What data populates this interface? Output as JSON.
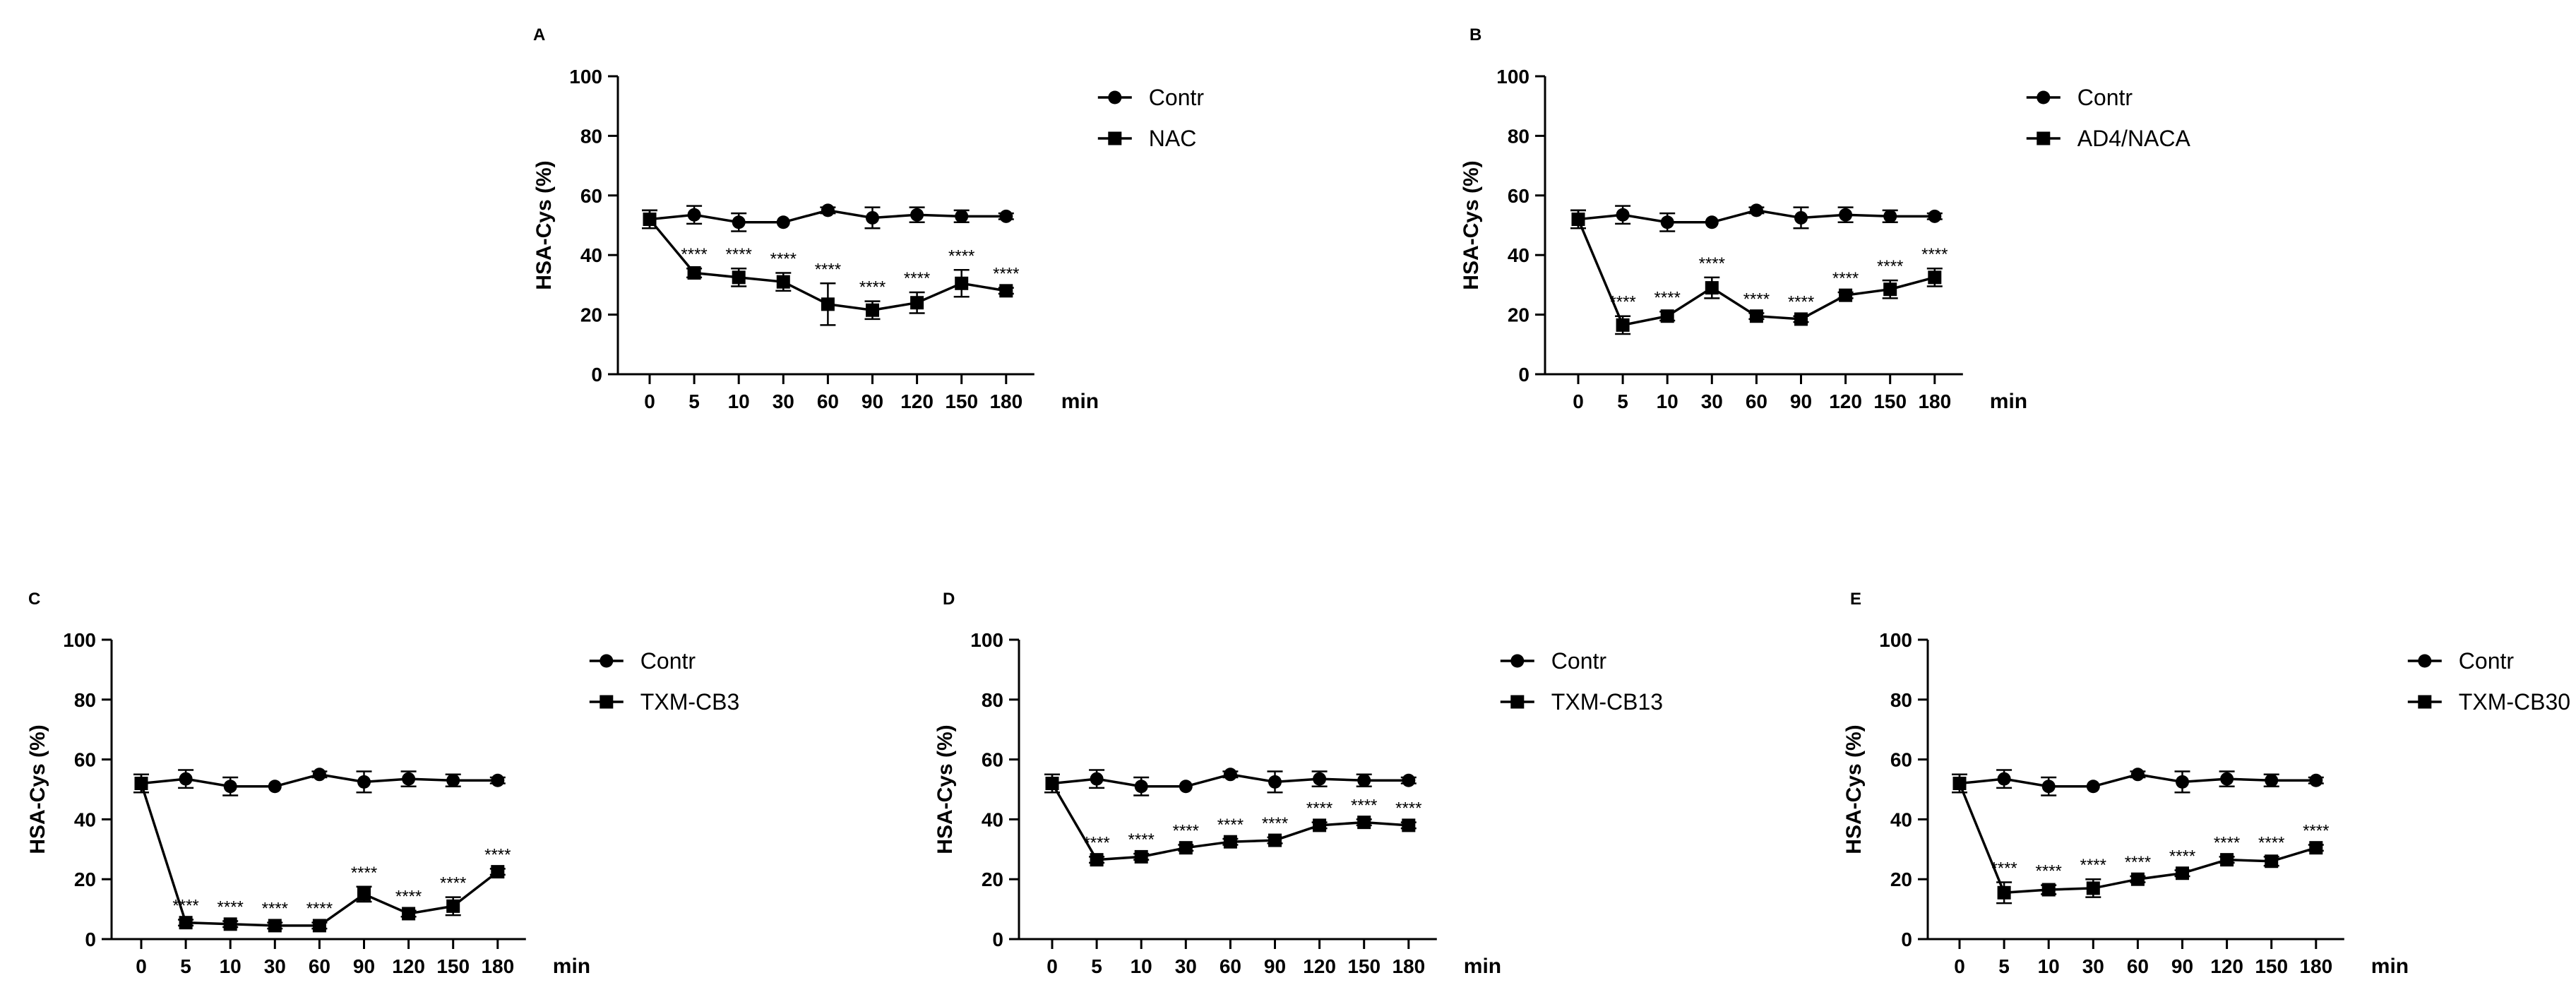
{
  "chart_data": [
    {
      "type": "line",
      "panel": "A",
      "title": "",
      "xlabel": "min",
      "ylabel": "HSA-Cys (%)",
      "ylim": [
        0,
        100
      ],
      "yticks": [
        0,
        20,
        40,
        60,
        80,
        100
      ],
      "categories": [
        "0",
        "5",
        "10",
        "30",
        "60",
        "90",
        "120",
        "150",
        "180"
      ],
      "legend_position": "top-right",
      "grid": false,
      "series": [
        {
          "name": "Contr",
          "marker": "circle",
          "values": [
            52,
            53.5,
            51,
            51,
            55,
            52.5,
            53.5,
            53,
            53
          ],
          "errors": [
            3,
            3,
            3,
            0.5,
            1,
            3.5,
            2.5,
            2,
            1
          ]
        },
        {
          "name": "NAC",
          "marker": "square",
          "values": [
            52,
            34,
            32.5,
            31,
            23.5,
            21.5,
            24,
            30.5,
            28
          ],
          "errors": [
            3,
            1.5,
            3,
            3,
            7,
            3,
            3.5,
            4.5,
            1
          ]
        }
      ],
      "annotations": [
        "",
        "****",
        "****",
        "****",
        "****",
        "****",
        "****",
        "****",
        "****"
      ]
    },
    {
      "type": "line",
      "panel": "B",
      "title": "",
      "xlabel": "min",
      "ylabel": "HSA-Cys (%)",
      "ylim": [
        0,
        100
      ],
      "yticks": [
        0,
        20,
        40,
        60,
        80,
        100
      ],
      "categories": [
        "0",
        "5",
        "10",
        "30",
        "60",
        "90",
        "120",
        "150",
        "180"
      ],
      "legend_position": "top-right",
      "grid": false,
      "series": [
        {
          "name": "Contr",
          "marker": "circle",
          "values": [
            52,
            53.5,
            51,
            51,
            55,
            52.5,
            53.5,
            53,
            53
          ],
          "errors": [
            3,
            3,
            3,
            0.5,
            1,
            3.5,
            2.5,
            2,
            1
          ]
        },
        {
          "name": "AD4/NACA",
          "marker": "square",
          "values": [
            52,
            16.5,
            19.5,
            29,
            19.5,
            18.5,
            26.5,
            28.5,
            32.5
          ],
          "errors": [
            3,
            3,
            1.5,
            3.5,
            1,
            1,
            1,
            3,
            3
          ]
        }
      ],
      "annotations": [
        "",
        "****",
        "****",
        "****",
        "****",
        "****",
        "****",
        "****",
        "****"
      ]
    },
    {
      "type": "line",
      "panel": "C",
      "title": "",
      "xlabel": "min",
      "ylabel": "HSA-Cys (%)",
      "ylim": [
        0,
        100
      ],
      "yticks": [
        0,
        20,
        40,
        60,
        80,
        100
      ],
      "categories": [
        "0",
        "5",
        "10",
        "30",
        "60",
        "90",
        "120",
        "150",
        "180"
      ],
      "legend_position": "top-right",
      "grid": false,
      "series": [
        {
          "name": "Contr",
          "marker": "circle",
          "values": [
            52,
            53.5,
            51,
            51,
            55,
            52.5,
            53.5,
            53,
            53
          ],
          "errors": [
            3,
            3,
            3,
            0.5,
            1,
            3.5,
            2.5,
            2,
            1
          ]
        },
        {
          "name": "TXM-CB3",
          "marker": "square",
          "values": [
            52,
            5.5,
            5,
            4.5,
            4.5,
            15,
            8.5,
            11,
            22.5
          ],
          "errors": [
            3,
            1,
            1,
            1,
            1,
            2.5,
            1,
            3,
            1
          ]
        }
      ],
      "annotations": [
        "",
        "****",
        "****",
        "****",
        "****",
        "****",
        "****",
        "****",
        "****"
      ]
    },
    {
      "type": "line",
      "panel": "D",
      "title": "",
      "xlabel": "min",
      "ylabel": "HSA-Cys (%)",
      "ylim": [
        0,
        100
      ],
      "yticks": [
        0,
        20,
        40,
        60,
        80,
        100
      ],
      "categories": [
        "0",
        "5",
        "10",
        "30",
        "60",
        "90",
        "120",
        "150",
        "180"
      ],
      "legend_position": "top-right",
      "grid": false,
      "series": [
        {
          "name": "Contr",
          "marker": "circle",
          "values": [
            52,
            53.5,
            51,
            51,
            55,
            52.5,
            53.5,
            53,
            53
          ],
          "errors": [
            3,
            3,
            3,
            0.5,
            1,
            3.5,
            2.5,
            2,
            1
          ]
        },
        {
          "name": "TXM-CB13",
          "marker": "square",
          "values": [
            52,
            26.5,
            27.5,
            30.5,
            32.5,
            33,
            38,
            39,
            38
          ],
          "errors": [
            3,
            1,
            1,
            1,
            1,
            1,
            1,
            1,
            1
          ]
        }
      ],
      "annotations": [
        "",
        "****",
        "****",
        "****",
        "****",
        "****",
        "****",
        "****",
        "****"
      ]
    },
    {
      "type": "line",
      "panel": "E",
      "title": "",
      "xlabel": "min",
      "ylabel": "HSA-Cys (%)",
      "ylim": [
        0,
        100
      ],
      "yticks": [
        0,
        20,
        40,
        60,
        80,
        100
      ],
      "categories": [
        "0",
        "5",
        "10",
        "30",
        "60",
        "90",
        "120",
        "150",
        "180"
      ],
      "legend_position": "top-right",
      "grid": false,
      "series": [
        {
          "name": "Contr",
          "marker": "circle",
          "values": [
            52,
            53.5,
            51,
            51,
            55,
            52.5,
            53.5,
            53,
            53
          ],
          "errors": [
            3,
            3,
            3,
            0.5,
            1,
            3.5,
            2.5,
            2,
            1
          ]
        },
        {
          "name": "TXM-CB30",
          "marker": "square",
          "values": [
            52,
            15.5,
            16.5,
            17,
            20,
            22,
            26.5,
            26,
            30.5
          ],
          "errors": [
            3,
            3.5,
            1.5,
            3,
            1,
            1,
            1,
            1.5,
            1
          ]
        }
      ],
      "annotations": [
        "",
        "****",
        "****",
        "****",
        "****",
        "****",
        "****",
        "****",
        "****"
      ]
    }
  ]
}
